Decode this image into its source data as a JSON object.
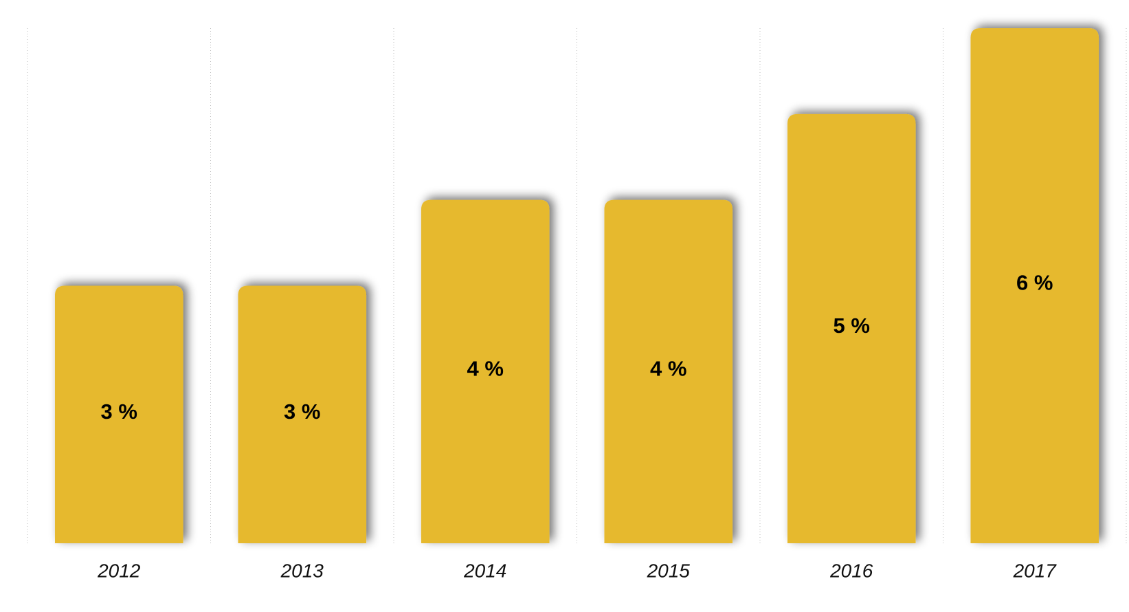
{
  "chart_data": {
    "type": "bar",
    "categories": [
      "2012",
      "2013",
      "2014",
      "2015",
      "2016",
      "2017"
    ],
    "values": [
      3,
      3,
      4,
      4,
      5,
      6
    ],
    "value_labels": [
      "3 %",
      "3 %",
      "4 %",
      "4 %",
      "5 %",
      "6 %"
    ],
    "color": "#e6b92e",
    "ylim": [
      0,
      6
    ]
  }
}
